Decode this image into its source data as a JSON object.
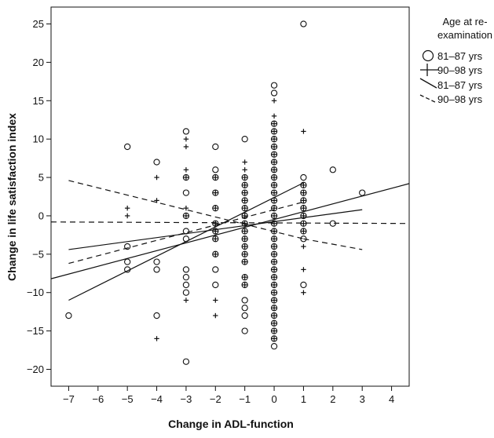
{
  "chart_data": {
    "type": "scatter",
    "xlabel": "Change in ADL-function",
    "ylabel": "Change in life satisfaction index",
    "xlim": [
      -7.6,
      4.6
    ],
    "ylim": [
      -22.2,
      27.2
    ],
    "xticks": [
      -7,
      -6,
      -5,
      -4,
      -3,
      -2,
      -1,
      0,
      1,
      2,
      3,
      4
    ],
    "yticks": [
      -20,
      -15,
      -10,
      -5,
      0,
      5,
      10,
      15,
      20,
      25
    ],
    "grid": false,
    "legend": {
      "title_lines": [
        "Age at re-",
        "examination"
      ],
      "entries": [
        {
          "label": "81–87 yrs",
          "marker": "circle"
        },
        {
          "label": "90–98 yrs",
          "marker": "plus"
        },
        {
          "label": "81–87 yrs",
          "marker": "solid-line"
        },
        {
          "label": "90–98 yrs",
          "marker": "dashed-line"
        }
      ],
      "placement": "right"
    },
    "series": [
      {
        "name": "81–87 yrs",
        "marker": "circle",
        "points": [
          [
            -7,
            -13
          ],
          [
            -5,
            9
          ],
          [
            -5,
            -4
          ],
          [
            -5,
            -6
          ],
          [
            -5,
            -7
          ],
          [
            -4,
            7
          ],
          [
            -4,
            -6
          ],
          [
            -4,
            -7
          ],
          [
            -4,
            -13
          ],
          [
            -3,
            11
          ],
          [
            -3,
            5
          ],
          [
            -3,
            3
          ],
          [
            -3,
            0
          ],
          [
            -3,
            -2
          ],
          [
            -3,
            -3
          ],
          [
            -3,
            -7
          ],
          [
            -3,
            -8
          ],
          [
            -3,
            -9
          ],
          [
            -3,
            -10
          ],
          [
            -3,
            -19
          ],
          [
            -2,
            9
          ],
          [
            -2,
            6
          ],
          [
            -2,
            5
          ],
          [
            -2,
            3
          ],
          [
            -2,
            1
          ],
          [
            -2,
            -1
          ],
          [
            -2,
            -2
          ],
          [
            -2,
            -3
          ],
          [
            -2,
            -5
          ],
          [
            -2,
            -7
          ],
          [
            -2,
            -9
          ],
          [
            -1,
            10
          ],
          [
            -1,
            5
          ],
          [
            -1,
            4
          ],
          [
            -1,
            3
          ],
          [
            -1,
            2
          ],
          [
            -1,
            1
          ],
          [
            -1,
            0
          ],
          [
            -1,
            -1
          ],
          [
            -1,
            -2
          ],
          [
            -1,
            -3
          ],
          [
            -1,
            -4
          ],
          [
            -1,
            -5
          ],
          [
            -1,
            -6
          ],
          [
            -1,
            -8
          ],
          [
            -1,
            -9
          ],
          [
            -1,
            -11
          ],
          [
            -1,
            -12
          ],
          [
            -1,
            -13
          ],
          [
            -1,
            -15
          ],
          [
            0,
            17
          ],
          [
            0,
            16
          ],
          [
            0,
            12
          ],
          [
            0,
            11
          ],
          [
            0,
            10
          ],
          [
            0,
            9
          ],
          [
            0,
            8
          ],
          [
            0,
            7
          ],
          [
            0,
            6
          ],
          [
            0,
            5
          ],
          [
            0,
            4
          ],
          [
            0,
            3
          ],
          [
            0,
            2
          ],
          [
            0,
            1
          ],
          [
            0,
            0
          ],
          [
            0,
            -1
          ],
          [
            0,
            -2
          ],
          [
            0,
            -3
          ],
          [
            0,
            -4
          ],
          [
            0,
            -5
          ],
          [
            0,
            -6
          ],
          [
            0,
            -7
          ],
          [
            0,
            -8
          ],
          [
            0,
            -9
          ],
          [
            0,
            -10
          ],
          [
            0,
            -11
          ],
          [
            0,
            -12
          ],
          [
            0,
            -13
          ],
          [
            0,
            -14
          ],
          [
            0,
            -15
          ],
          [
            0,
            -16
          ],
          [
            0,
            -17
          ],
          [
            1,
            25
          ],
          [
            1,
            5
          ],
          [
            1,
            4
          ],
          [
            1,
            3
          ],
          [
            1,
            2
          ],
          [
            1,
            1
          ],
          [
            1,
            0
          ],
          [
            1,
            -1
          ],
          [
            1,
            -2
          ],
          [
            1,
            -3
          ],
          [
            1,
            -9
          ],
          [
            2,
            6
          ],
          [
            2,
            -1
          ],
          [
            3,
            3
          ]
        ]
      },
      {
        "name": "90–98 yrs",
        "marker": "plus",
        "points": [
          [
            -5,
            1
          ],
          [
            -5,
            0
          ],
          [
            -4,
            5
          ],
          [
            -4,
            2
          ],
          [
            -4,
            -16
          ],
          [
            -3,
            10
          ],
          [
            -3,
            9
          ],
          [
            -3,
            6
          ],
          [
            -3,
            5
          ],
          [
            -3,
            1
          ],
          [
            -3,
            0
          ],
          [
            -3,
            -11
          ],
          [
            -2,
            5
          ],
          [
            -2,
            3
          ],
          [
            -2,
            1
          ],
          [
            -2,
            -1
          ],
          [
            -2,
            -2
          ],
          [
            -2,
            -3
          ],
          [
            -2,
            -5
          ],
          [
            -2,
            -11
          ],
          [
            -2,
            -13
          ],
          [
            -1,
            7
          ],
          [
            -1,
            6
          ],
          [
            -1,
            5
          ],
          [
            -1,
            4
          ],
          [
            -1,
            3
          ],
          [
            -1,
            2
          ],
          [
            -1,
            1
          ],
          [
            -1,
            0
          ],
          [
            -1,
            -1
          ],
          [
            -1,
            -2
          ],
          [
            -1,
            -3
          ],
          [
            -1,
            -4
          ],
          [
            -1,
            -5
          ],
          [
            -1,
            -6
          ],
          [
            -1,
            -8
          ],
          [
            -1,
            -9
          ],
          [
            0,
            15
          ],
          [
            0,
            13
          ],
          [
            0,
            12
          ],
          [
            0,
            11
          ],
          [
            0,
            10
          ],
          [
            0,
            9
          ],
          [
            0,
            8
          ],
          [
            0,
            7
          ],
          [
            0,
            6
          ],
          [
            0,
            5
          ],
          [
            0,
            4
          ],
          [
            0,
            3
          ],
          [
            0,
            2
          ],
          [
            0,
            1
          ],
          [
            0,
            0
          ],
          [
            0,
            -1
          ],
          [
            0,
            -2
          ],
          [
            0,
            -3
          ],
          [
            0,
            -4
          ],
          [
            0,
            -5
          ],
          [
            0,
            -6
          ],
          [
            0,
            -7
          ],
          [
            0,
            -8
          ],
          [
            0,
            -9
          ],
          [
            0,
            -10
          ],
          [
            0,
            -11
          ],
          [
            0,
            -12
          ],
          [
            0,
            -13
          ],
          [
            0,
            -14
          ],
          [
            0,
            -15
          ],
          [
            0,
            -16
          ],
          [
            1,
            11
          ],
          [
            1,
            4
          ],
          [
            1,
            3
          ],
          [
            1,
            2
          ],
          [
            1,
            1
          ],
          [
            1,
            0
          ],
          [
            1,
            -1
          ],
          [
            1,
            -2
          ],
          [
            1,
            -4
          ],
          [
            1,
            -7
          ],
          [
            1,
            -10
          ]
        ]
      }
    ],
    "lines": [
      {
        "name": "81–87 yrs fit",
        "style": "solid",
        "from": [
          -7,
          -11.0
        ],
        "to": [
          1,
          4.3
        ]
      },
      {
        "name": "81–87 yrs CI upper",
        "style": "solid",
        "from": [
          -7,
          -4.4
        ],
        "to": [
          3,
          0.8
        ]
      },
      {
        "name": "81–87 yrs CI lower / total fit",
        "style": "solid",
        "from": [
          -7.6,
          -8.2
        ],
        "to": [
          4.6,
          4.2
        ]
      },
      {
        "name": "90–98 yrs fit",
        "style": "dashed",
        "from": [
          -7.6,
          -0.8
        ],
        "to": [
          4.6,
          -1.0
        ]
      },
      {
        "name": "90–98 yrs CI upper",
        "style": "dashed",
        "from": [
          -7,
          4.6
        ],
        "to": [
          1,
          -3.0
        ]
      },
      {
        "name": "90–98 yrs CI lower",
        "style": "dashed",
        "from": [
          -7,
          -6.2
        ],
        "to": [
          1,
          1.8
        ]
      },
      {
        "name": "90–98 yrs CI right",
        "style": "dashed",
        "from": [
          1,
          -3.0
        ],
        "to": [
          3,
          -4.4
        ]
      }
    ]
  }
}
